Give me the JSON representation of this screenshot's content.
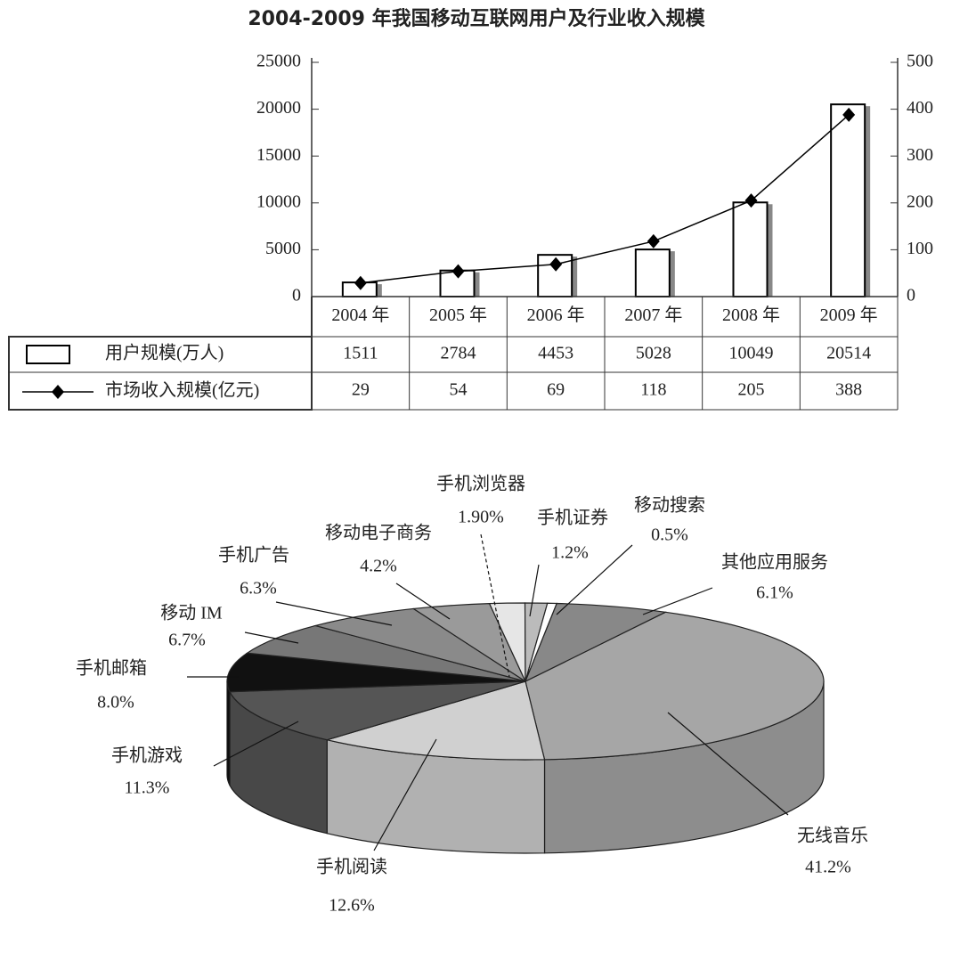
{
  "chart_data": [
    {
      "type": "bar",
      "title": "2004-2009 年我国移动互联网用户及行业收入规模",
      "categories": [
        "2004 年",
        "2005 年",
        "2006 年",
        "2007 年",
        "2008 年",
        "2009 年"
      ],
      "series": [
        {
          "name": "用户规模(万人)",
          "type": "bar",
          "color": "#ffffff",
          "values": [
            1511,
            2784,
            4453,
            5028,
            10049,
            20514
          ]
        },
        {
          "name": "市场收入规模(亿元)",
          "type": "line",
          "axis": "y2",
          "color": "#000000",
          "values": [
            29,
            54,
            69,
            118,
            205,
            388
          ]
        }
      ],
      "ylim": [
        0,
        25000
      ],
      "yticks": [
        0,
        5000,
        10000,
        15000,
        20000,
        25000
      ],
      "y2lim": [
        0,
        500
      ],
      "y2ticks": [
        0,
        100,
        200,
        300,
        400,
        500
      ],
      "grid": false
    },
    {
      "type": "pie",
      "categories": [
        "无线音乐",
        "手机阅读",
        "手机游戏",
        "手机邮箱",
        "移动 IM",
        "手机广告",
        "移动电子商务",
        "手机浏览器",
        "手机证券",
        "移动搜索",
        "其他应用服务"
      ],
      "values": [
        41.2,
        12.6,
        11.3,
        8.0,
        6.7,
        6.3,
        4.2,
        1.9,
        1.2,
        0.5,
        6.1
      ],
      "value_labels": [
        "41.2%",
        "12.6%",
        "11.3%",
        "8.0%",
        "6.7%",
        "6.3%",
        "4.2%",
        "1.90%",
        "1.2%",
        "0.5%",
        "6.1%"
      ],
      "colors": [
        "#a6a6a6",
        "#d0d0d0",
        "#555555",
        "#111111",
        "#777777",
        "#8a8a8a",
        "#9a9a9a",
        "#e6e6e6",
        "#bbbbbb",
        "#ffffff",
        "#888888"
      ]
    }
  ]
}
